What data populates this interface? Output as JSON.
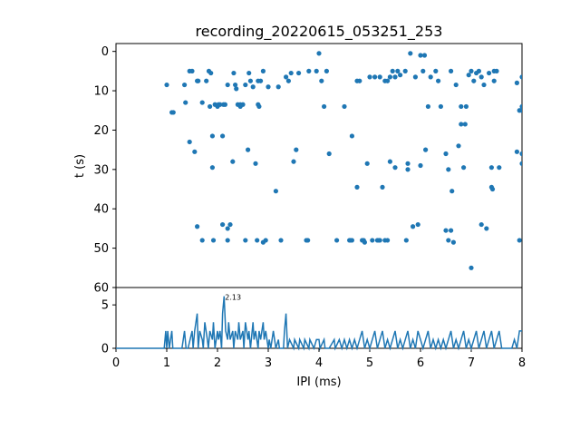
{
  "chart_data": [
    {
      "type": "scatter",
      "title": "recording_20220615_053251_253",
      "xlabel": "",
      "ylabel": "t (s)",
      "xlim": [
        0,
        8
      ],
      "ylim": [
        60,
        -2
      ],
      "y_inverted": true,
      "yticks": [
        "0",
        "10",
        "20",
        "30",
        "40",
        "50",
        "60"
      ],
      "marker_color": "#1f77b4",
      "points": [
        [
          1.0,
          8.5
        ],
        [
          1.1,
          15.5
        ],
        [
          1.13,
          15.5
        ],
        [
          1.35,
          8.5
        ],
        [
          1.37,
          13.0
        ],
        [
          1.45,
          23.0
        ],
        [
          1.45,
          5.0
        ],
        [
          1.5,
          5.0
        ],
        [
          1.55,
          25.5
        ],
        [
          1.6,
          7.5
        ],
        [
          1.62,
          7.5
        ],
        [
          1.6,
          44.5
        ],
        [
          1.7,
          48.0
        ],
        [
          1.7,
          13.0
        ],
        [
          1.78,
          7.5
        ],
        [
          1.83,
          5.0
        ],
        [
          1.87,
          5.5
        ],
        [
          1.85,
          14.0
        ],
        [
          1.9,
          21.5
        ],
        [
          1.9,
          29.5
        ],
        [
          1.92,
          48.0
        ],
        [
          1.95,
          13.5
        ],
        [
          2.0,
          14.0
        ],
        [
          2.02,
          13.5
        ],
        [
          2.05,
          13.5
        ],
        [
          2.1,
          21.5
        ],
        [
          2.1,
          44.0
        ],
        [
          2.12,
          13.5
        ],
        [
          2.15,
          13.5
        ],
        [
          2.2,
          48.0
        ],
        [
          2.2,
          45.0
        ],
        [
          2.25,
          44.0
        ],
        [
          2.2,
          8.5
        ],
        [
          2.3,
          28.0
        ],
        [
          2.32,
          5.5
        ],
        [
          2.35,
          8.5
        ],
        [
          2.37,
          9.5
        ],
        [
          2.4,
          13.5
        ],
        [
          2.45,
          13.5
        ],
        [
          2.45,
          14.0
        ],
        [
          2.5,
          13.5
        ],
        [
          2.55,
          8.5
        ],
        [
          2.55,
          48.0
        ],
        [
          2.6,
          25.0
        ],
        [
          2.62,
          5.5
        ],
        [
          2.65,
          7.5
        ],
        [
          2.7,
          9.0
        ],
        [
          2.75,
          28.5
        ],
        [
          2.78,
          48.0
        ],
        [
          2.8,
          7.5
        ],
        [
          2.8,
          13.5
        ],
        [
          2.82,
          14.0
        ],
        [
          2.85,
          7.5
        ],
        [
          2.9,
          5.0
        ],
        [
          2.9,
          48.5
        ],
        [
          2.95,
          48.0
        ],
        [
          3.0,
          9.0
        ],
        [
          3.15,
          35.5
        ],
        [
          3.2,
          9.0
        ],
        [
          3.25,
          48.0
        ],
        [
          3.35,
          6.5
        ],
        [
          3.4,
          7.5
        ],
        [
          3.45,
          5.5
        ],
        [
          3.5,
          28.0
        ],
        [
          3.55,
          25.0
        ],
        [
          3.6,
          5.5
        ],
        [
          3.75,
          48.0
        ],
        [
          3.78,
          48.0
        ],
        [
          3.8,
          5.0
        ],
        [
          3.95,
          5.0
        ],
        [
          4.0,
          0.5
        ],
        [
          4.05,
          7.5
        ],
        [
          4.1,
          14.0
        ],
        [
          4.15,
          5.0
        ],
        [
          4.2,
          26.0
        ],
        [
          4.35,
          48.0
        ],
        [
          4.5,
          14.0
        ],
        [
          4.6,
          48.0
        ],
        [
          4.62,
          48.0
        ],
        [
          4.65,
          48.0
        ],
        [
          4.65,
          21.5
        ],
        [
          4.75,
          34.5
        ],
        [
          4.75,
          7.5
        ],
        [
          4.8,
          7.5
        ],
        [
          4.85,
          48.0
        ],
        [
          4.88,
          48.0
        ],
        [
          4.9,
          48.5
        ],
        [
          4.95,
          28.5
        ],
        [
          5.0,
          6.5
        ],
        [
          5.05,
          48.0
        ],
        [
          5.1,
          6.5
        ],
        [
          5.15,
          48.0
        ],
        [
          5.18,
          48.0
        ],
        [
          5.2,
          48.0
        ],
        [
          5.2,
          6.5
        ],
        [
          5.25,
          34.5
        ],
        [
          5.3,
          48.0
        ],
        [
          5.3,
          7.5
        ],
        [
          5.35,
          7.5
        ],
        [
          5.35,
          48.0
        ],
        [
          5.4,
          28.0
        ],
        [
          5.4,
          6.5
        ],
        [
          5.45,
          5.0
        ],
        [
          5.5,
          6.5
        ],
        [
          5.5,
          29.5
        ],
        [
          5.55,
          5.0
        ],
        [
          5.6,
          6.0
        ],
        [
          5.7,
          5.0
        ],
        [
          5.72,
          48.0
        ],
        [
          5.75,
          28.5
        ],
        [
          5.75,
          30.0
        ],
        [
          5.8,
          0.5
        ],
        [
          5.85,
          44.5
        ],
        [
          5.9,
          6.5
        ],
        [
          5.95,
          44.0
        ],
        [
          6.0,
          1.0
        ],
        [
          6.0,
          29.0
        ],
        [
          6.05,
          5.0
        ],
        [
          6.08,
          1.0
        ],
        [
          6.1,
          25.0
        ],
        [
          6.15,
          14.0
        ],
        [
          6.2,
          6.5
        ],
        [
          6.3,
          5.0
        ],
        [
          6.35,
          7.5
        ],
        [
          6.4,
          14.0
        ],
        [
          6.5,
          45.5
        ],
        [
          6.5,
          26.0
        ],
        [
          6.55,
          30.0
        ],
        [
          6.55,
          48.0
        ],
        [
          6.6,
          45.5
        ],
        [
          6.6,
          5.0
        ],
        [
          6.62,
          35.5
        ],
        [
          6.65,
          48.5
        ],
        [
          6.7,
          8.5
        ],
        [
          6.75,
          24.0
        ],
        [
          6.8,
          14.0
        ],
        [
          6.8,
          18.5
        ],
        [
          6.85,
          29.5
        ],
        [
          6.88,
          18.5
        ],
        [
          6.9,
          14.0
        ],
        [
          6.95,
          6.0
        ],
        [
          7.0,
          55.0
        ],
        [
          7.0,
          5.0
        ],
        [
          7.05,
          7.5
        ],
        [
          7.1,
          5.5
        ],
        [
          7.15,
          5.0
        ],
        [
          7.2,
          44.0
        ],
        [
          7.2,
          6.5
        ],
        [
          7.25,
          8.5
        ],
        [
          7.3,
          45.0
        ],
        [
          7.35,
          5.5
        ],
        [
          7.4,
          29.5
        ],
        [
          7.45,
          5.0
        ],
        [
          7.4,
          34.5
        ],
        [
          7.42,
          35.0
        ],
        [
          7.45,
          7.5
        ],
        [
          7.5,
          5.0
        ],
        [
          7.55,
          29.5
        ],
        [
          7.9,
          25.5
        ],
        [
          7.95,
          15.0
        ],
        [
          7.9,
          8.0
        ],
        [
          7.95,
          48.0
        ],
        [
          8.0,
          15.0
        ],
        [
          8.0,
          26.0
        ],
        [
          8.0,
          28.5
        ],
        [
          8.0,
          14.0
        ],
        [
          8.0,
          6.5
        ]
      ]
    },
    {
      "type": "line",
      "title": "",
      "xlabel": "IPI (ms)",
      "ylabel": "",
      "xlim": [
        0,
        8
      ],
      "ylim": [
        0,
        7
      ],
      "xticks": [
        "0",
        "1",
        "2",
        "3",
        "4",
        "5",
        "6",
        "7",
        "8"
      ],
      "yticks": [
        "0",
        "5"
      ],
      "line_color": "#1f77b4",
      "peak_annotation": {
        "x": 2.13,
        "y": 6,
        "text": "2.13"
      },
      "x": [
        0,
        0.95,
        0.98,
        1.0,
        1.02,
        1.05,
        1.1,
        1.12,
        1.15,
        1.3,
        1.35,
        1.38,
        1.42,
        1.5,
        1.52,
        1.55,
        1.6,
        1.62,
        1.65,
        1.7,
        1.72,
        1.75,
        1.8,
        1.82,
        1.85,
        1.9,
        1.92,
        1.95,
        2.0,
        2.02,
        2.05,
        2.08,
        2.1,
        2.13,
        2.16,
        2.2,
        2.22,
        2.25,
        2.3,
        2.32,
        2.35,
        2.4,
        2.42,
        2.45,
        2.5,
        2.52,
        2.55,
        2.6,
        2.62,
        2.65,
        2.7,
        2.72,
        2.75,
        2.8,
        2.82,
        2.85,
        2.9,
        2.92,
        2.95,
        3.0,
        3.02,
        3.05,
        3.1,
        3.15,
        3.2,
        3.22,
        3.3,
        3.32,
        3.35,
        3.38,
        3.42,
        3.5,
        3.52,
        3.6,
        3.62,
        3.7,
        3.72,
        3.8,
        3.82,
        3.9,
        3.95,
        4.0,
        4.02,
        4.1,
        4.12,
        4.2,
        4.3,
        4.32,
        4.4,
        4.45,
        4.5,
        4.55,
        4.6,
        4.65,
        4.7,
        4.75,
        4.8,
        4.85,
        4.9,
        4.95,
        5.0,
        5.05,
        5.1,
        5.15,
        5.2,
        5.25,
        5.3,
        5.35,
        5.4,
        5.45,
        5.5,
        5.55,
        5.6,
        5.65,
        5.7,
        5.75,
        5.8,
        5.85,
        5.9,
        5.95,
        6.0,
        6.05,
        6.1,
        6.15,
        6.2,
        6.25,
        6.3,
        6.35,
        6.4,
        6.45,
        6.5,
        6.55,
        6.6,
        6.65,
        6.7,
        6.75,
        6.8,
        6.85,
        6.9,
        6.95,
        7.0,
        7.05,
        7.1,
        7.15,
        7.2,
        7.25,
        7.3,
        7.35,
        7.4,
        7.45,
        7.5,
        7.55,
        7.6,
        7.8,
        7.85,
        7.9,
        7.95,
        8.0
      ],
      "y": [
        0,
        0,
        2,
        0,
        2,
        0,
        2,
        0,
        0,
        0,
        2,
        0,
        0,
        2,
        0,
        2,
        4,
        0,
        2,
        1,
        0,
        3,
        1,
        0,
        2,
        1,
        3,
        0,
        2,
        1,
        2,
        0,
        4,
        6,
        2,
        1,
        3,
        1,
        2,
        0,
        2,
        1,
        3,
        1,
        2,
        0,
        3,
        1,
        2,
        0,
        3,
        1,
        2,
        0,
        2,
        1,
        3,
        1,
        2,
        0,
        1,
        0,
        2,
        0,
        1,
        0,
        0,
        2,
        4,
        0,
        1,
        0,
        1,
        0,
        1,
        0,
        1,
        0,
        1,
        0,
        1,
        1,
        0,
        1,
        0,
        0,
        1,
        0,
        1,
        0,
        1,
        0,
        1,
        0,
        1,
        0,
        1,
        2,
        0,
        1,
        0,
        1,
        2,
        0,
        1,
        2,
        0,
        1,
        0,
        1,
        2,
        0,
        1,
        0,
        1,
        2,
        0,
        1,
        0,
        2,
        1,
        0,
        1,
        2,
        0,
        1,
        0,
        1,
        0,
        1,
        0,
        1,
        2,
        0,
        1,
        0,
        1,
        2,
        0,
        1,
        0,
        1,
        2,
        0,
        1,
        2,
        0,
        1,
        2,
        0,
        1,
        2,
        0,
        0,
        1,
        0,
        2,
        2
      ]
    }
  ]
}
